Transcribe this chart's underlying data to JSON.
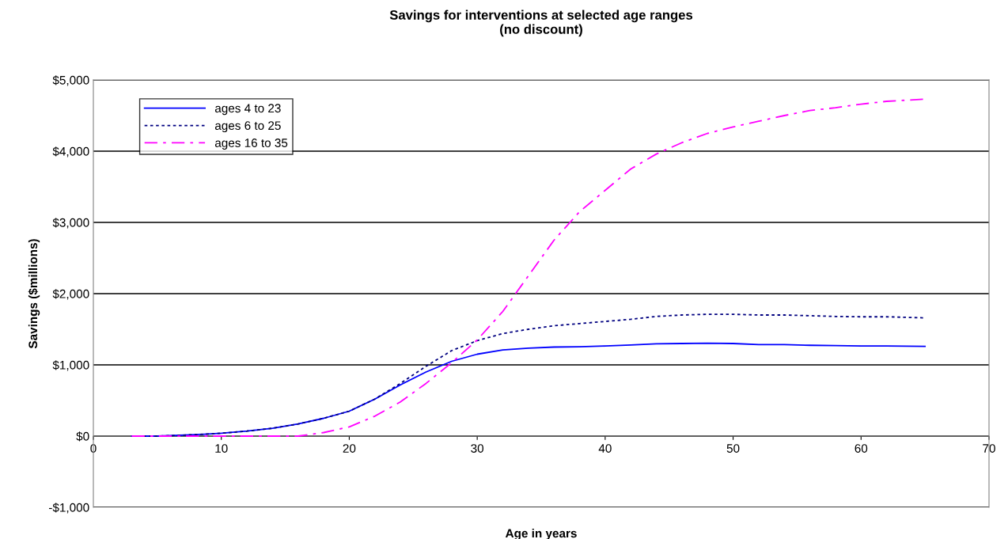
{
  "chart_data": {
    "type": "line",
    "title": "Savings for interventions at selected age ranges\n(no discount)",
    "xlabel": "Age in years",
    "ylabel": "Savings ($millions)",
    "xlim": [
      0,
      70
    ],
    "xticks": [
      0,
      10,
      20,
      30,
      40,
      50,
      60,
      70
    ],
    "ylim": [
      -1000,
      5000
    ],
    "yticks": [
      {
        "value": -1000,
        "label": "-$1,000"
      },
      {
        "value": 0,
        "label": "$0"
      },
      {
        "value": 1000,
        "label": "$1,000"
      },
      {
        "value": 2000,
        "label": "$2,000"
      },
      {
        "value": 3000,
        "label": "$3,000"
      },
      {
        "value": 4000,
        "label": "$4,000"
      },
      {
        "value": 5000,
        "label": "$5,000"
      }
    ],
    "grid": "y",
    "legend": "top left",
    "marker": "none",
    "x": [
      3,
      5,
      8,
      10,
      12,
      14,
      16,
      18,
      20,
      22,
      24,
      26,
      28,
      30,
      32,
      34,
      36,
      38,
      40,
      42,
      44,
      46,
      48,
      50,
      52,
      54,
      56,
      58,
      60,
      62,
      65
    ],
    "series": [
      {
        "name": "ages 4 to 23",
        "color": "#0000ff",
        "line_style": "solid",
        "values": [
          0,
          0,
          20,
          40,
          70,
          110,
          170,
          250,
          350,
          520,
          720,
          900,
          1050,
          1150,
          1210,
          1235,
          1250,
          1255,
          1265,
          1280,
          1295,
          1300,
          1305,
          1300,
          1285,
          1285,
          1275,
          1270,
          1265,
          1265,
          1260
        ]
      },
      {
        "name": "ages 6 to 25",
        "color": "#000080",
        "line_style": "dotted",
        "values": [
          0,
          0,
          20,
          40,
          70,
          110,
          170,
          250,
          350,
          520,
          740,
          980,
          1200,
          1340,
          1440,
          1500,
          1550,
          1580,
          1610,
          1640,
          1680,
          1700,
          1710,
          1710,
          1700,
          1700,
          1690,
          1680,
          1675,
          1675,
          1660
        ]
      },
      {
        "name": "ages 16 to 35",
        "color": "#ff00ff",
        "line_style": "dashdot",
        "values": [
          0,
          0,
          0,
          0,
          0,
          0,
          0,
          50,
          130,
          280,
          480,
          740,
          1030,
          1350,
          1750,
          2250,
          2750,
          3150,
          3450,
          3750,
          3960,
          4120,
          4250,
          4340,
          4420,
          4500,
          4570,
          4610,
          4660,
          4700,
          4730
        ]
      }
    ]
  }
}
